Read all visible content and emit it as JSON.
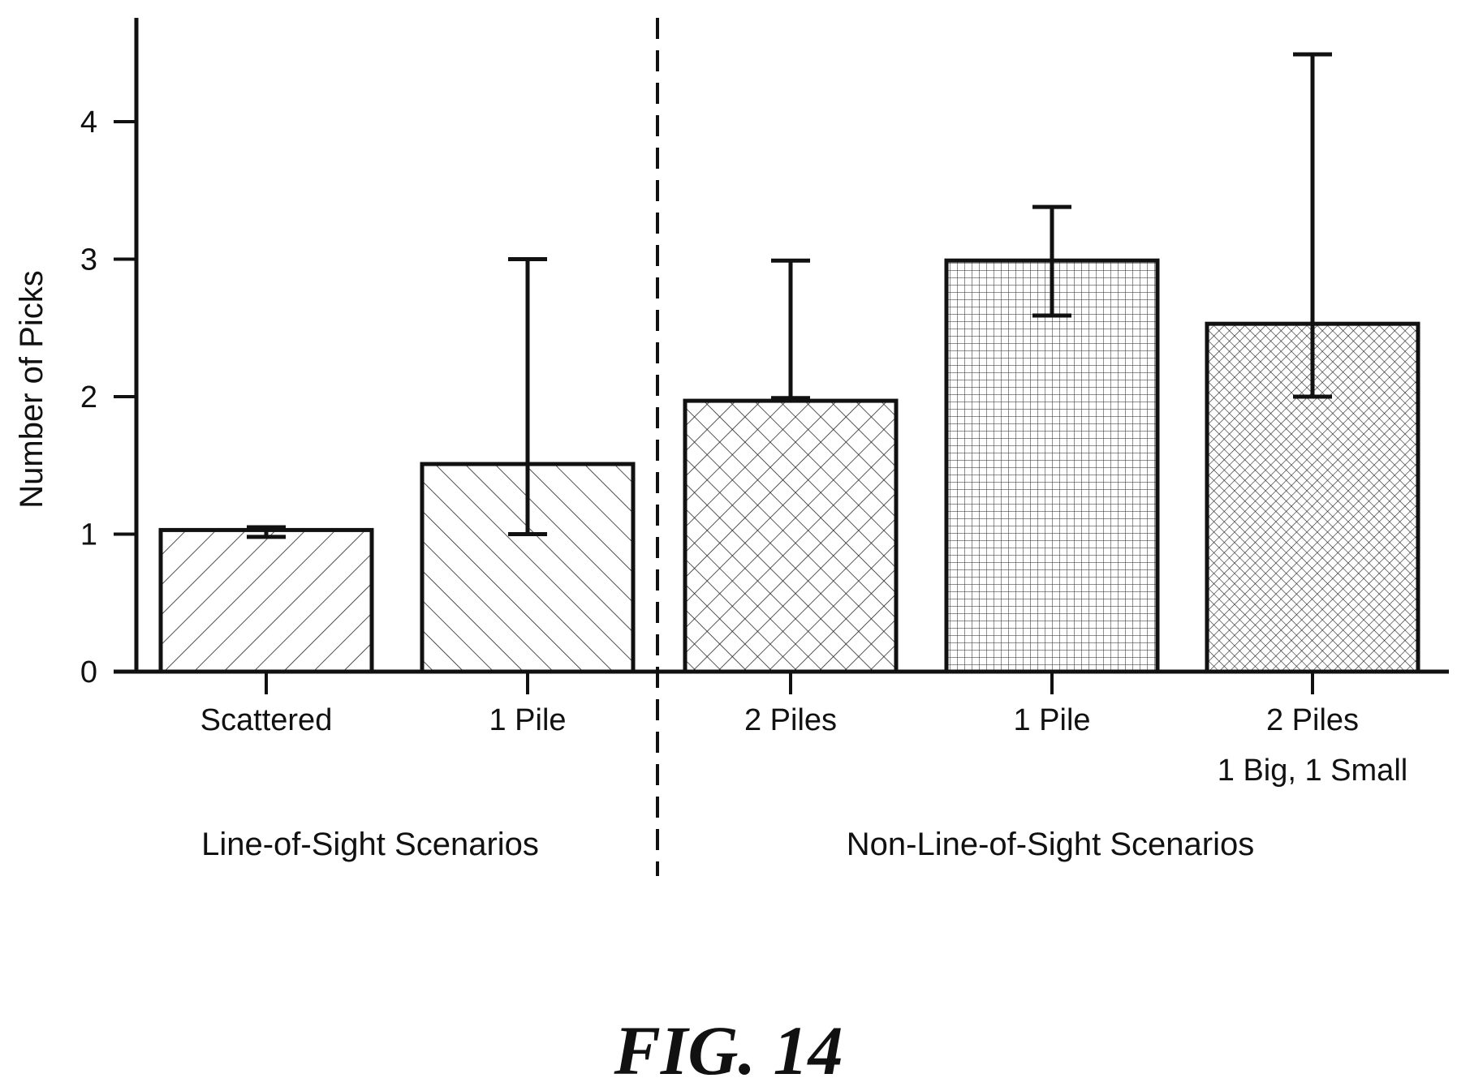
{
  "figure_label": "FIG. 14",
  "chart_data": {
    "type": "bar",
    "ylabel": "Number of Picks",
    "xlabel": "",
    "ylim": [
      0,
      4.5
    ],
    "yticks": [
      0,
      1,
      2,
      3,
      4
    ],
    "grid": false,
    "groups": [
      {
        "label": "Line-of-Sight Scenarios",
        "categories": [
          "Scattered",
          "1 Pile"
        ]
      },
      {
        "label": "Non-Line-of-Sight Scenarios",
        "categories": [
          "2 Piles",
          "1 Pile",
          "2 Piles\n1 Big, 1 Small"
        ]
      }
    ],
    "bars": [
      {
        "label": "Scattered",
        "value": 1.03,
        "err_low": 0.98,
        "err_high": 1.05,
        "pattern": "diag-up"
      },
      {
        "label": "1 Pile",
        "value": 1.51,
        "err_low": 1.0,
        "err_high": 3.0,
        "pattern": "diag-down"
      },
      {
        "label": "2 Piles",
        "value": 1.97,
        "err_low": 1.99,
        "err_high": 2.99,
        "pattern": "crosshatch"
      },
      {
        "label": "1 Pile",
        "value": 2.99,
        "err_low": 2.59,
        "err_high": 3.38,
        "pattern": "grid"
      },
      {
        "label": "2 Piles\n1 Big, 1 Small",
        "value": 2.53,
        "err_low": 2.0,
        "err_high": 4.49,
        "pattern": "fine-crosshatch"
      }
    ]
  }
}
